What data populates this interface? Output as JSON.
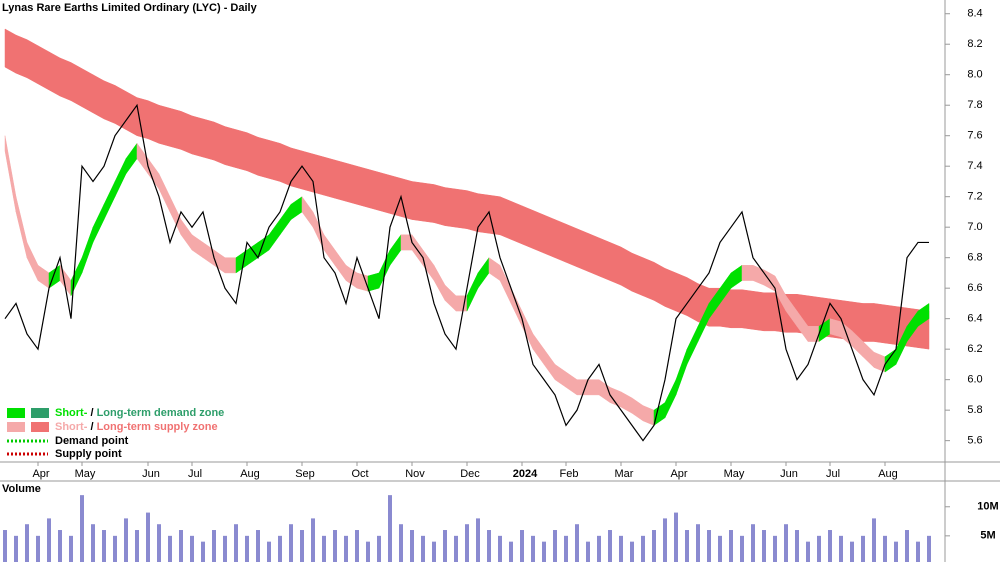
{
  "chart_data": [
    {
      "type": "line",
      "title": "Lynas Rare Earths Limited Ordinary (LYC) - Daily",
      "categories": [
        null,
        null,
        null,
        "Apr",
        null,
        null,
        null,
        "May",
        null,
        null,
        null,
        null,
        null,
        "Jun",
        null,
        null,
        null,
        "Jul",
        null,
        null,
        null,
        null,
        "Aug",
        null,
        null,
        null,
        null,
        "Sep",
        null,
        null,
        null,
        null,
        "Oct",
        null,
        null,
        null,
        null,
        "Nov",
        null,
        null,
        null,
        null,
        "Dec",
        null,
        null,
        null,
        null,
        "2024",
        null,
        null,
        null,
        "Feb",
        null,
        null,
        null,
        null,
        "Mar",
        null,
        null,
        null,
        null,
        "Apr",
        null,
        null,
        null,
        null,
        "May",
        null,
        null,
        null,
        null,
        "Jun",
        null,
        null,
        null,
        "Jul",
        null,
        null,
        null,
        null,
        "Aug",
        null,
        null,
        null,
        null
      ],
      "values": [
        6.4,
        6.5,
        6.3,
        6.2,
        6.6,
        6.8,
        6.4,
        7.4,
        7.3,
        7.4,
        7.6,
        7.7,
        7.8,
        7.4,
        7.2,
        6.9,
        7.1,
        7.0,
        7.1,
        6.8,
        6.6,
        6.5,
        6.9,
        6.8,
        7.0,
        7.1,
        7.3,
        7.4,
        7.3,
        6.8,
        6.7,
        6.5,
        6.8,
        6.6,
        6.4,
        7.0,
        7.2,
        6.9,
        6.8,
        6.5,
        6.3,
        6.2,
        6.6,
        7.0,
        7.1,
        6.8,
        6.6,
        6.4,
        6.1,
        6.0,
        5.9,
        5.7,
        5.8,
        6.0,
        6.1,
        5.9,
        5.8,
        5.7,
        5.6,
        5.7,
        6.0,
        6.4,
        6.5,
        6.6,
        6.7,
        6.9,
        7.0,
        7.1,
        6.8,
        6.7,
        6.6,
        6.2,
        6.0,
        6.1,
        6.3,
        6.5,
        6.4,
        6.2,
        6.0,
        5.9,
        6.1,
        6.2,
        6.8,
        6.9,
        6.9
      ],
      "color": "#000000",
      "bands": [
        {
          "upper": [
            8.3,
            8.26,
            8.23,
            8.19,
            8.15,
            8.11,
            8.08,
            8.04,
            8.0,
            7.96,
            7.93,
            7.89,
            7.85,
            7.83,
            7.8,
            7.78,
            7.76,
            7.73,
            7.71,
            7.69,
            7.66,
            7.64,
            7.62,
            7.59,
            7.57,
            7.55,
            7.52,
            7.5,
            7.48,
            7.46,
            7.44,
            7.42,
            7.4,
            7.38,
            7.36,
            7.34,
            7.32,
            7.3,
            7.29,
            7.28,
            7.26,
            7.25,
            7.24,
            7.22,
            7.21,
            7.2,
            7.17,
            7.14,
            7.11,
            7.08,
            7.05,
            7.02,
            6.99,
            6.96,
            6.93,
            6.9,
            6.87,
            6.83,
            6.8,
            6.77,
            6.73,
            6.7,
            6.67,
            6.63,
            6.6,
            6.6,
            6.59,
            6.59,
            6.58,
            6.57,
            6.57,
            6.56,
            6.56,
            6.55,
            6.54,
            6.53,
            6.52,
            6.51,
            6.5,
            6.5,
            6.49,
            6.48,
            6.47,
            6.46,
            6.45
          ],
          "lower": [
            8.05,
            8.01,
            7.98,
            7.94,
            7.9,
            7.86,
            7.83,
            7.79,
            7.75,
            7.71,
            7.68,
            7.64,
            7.6,
            7.58,
            7.55,
            7.53,
            7.51,
            7.48,
            7.46,
            7.44,
            7.41,
            7.39,
            7.37,
            7.34,
            7.32,
            7.3,
            7.27,
            7.25,
            7.23,
            7.21,
            7.19,
            7.17,
            7.15,
            7.13,
            7.11,
            7.09,
            7.07,
            7.05,
            7.04,
            7.03,
            7.01,
            7.0,
            6.99,
            6.97,
            6.96,
            6.95,
            6.92,
            6.89,
            6.86,
            6.83,
            6.8,
            6.77,
            6.74,
            6.71,
            6.68,
            6.65,
            6.62,
            6.58,
            6.55,
            6.52,
            6.48,
            6.45,
            6.42,
            6.38,
            6.35,
            6.35,
            6.34,
            6.34,
            6.33,
            6.32,
            6.32,
            6.31,
            6.31,
            6.3,
            6.29,
            6.28,
            6.27,
            6.26,
            6.25,
            6.25,
            6.24,
            6.23,
            6.22,
            6.21,
            6.2
          ],
          "rising_color": "#2e9e6a",
          "falling_color": "#f07272"
        },
        {
          "upper": [
            7.6,
            7.2,
            6.9,
            6.75,
            6.7,
            6.75,
            6.65,
            6.8,
            7.0,
            7.15,
            7.3,
            7.45,
            7.55,
            7.45,
            7.35,
            7.2,
            7.05,
            6.95,
            6.9,
            6.85,
            6.8,
            6.8,
            6.85,
            6.9,
            6.95,
            7.05,
            7.15,
            7.2,
            7.1,
            6.95,
            6.85,
            6.75,
            6.7,
            6.68,
            6.7,
            6.85,
            6.95,
            6.95,
            6.85,
            6.75,
            6.62,
            6.55,
            6.55,
            6.7,
            6.8,
            6.75,
            6.6,
            6.45,
            6.3,
            6.2,
            6.1,
            6.05,
            6.0,
            6.0,
            6.0,
            5.95,
            5.92,
            5.88,
            5.83,
            5.8,
            5.85,
            6.0,
            6.2,
            6.35,
            6.5,
            6.6,
            6.7,
            6.75,
            6.75,
            6.72,
            6.68,
            6.55,
            6.45,
            6.35,
            6.35,
            6.4,
            6.38,
            6.32,
            6.25,
            6.18,
            6.15,
            6.2,
            6.35,
            6.45,
            6.5
          ],
          "lower": [
            7.5,
            7.1,
            6.8,
            6.65,
            6.6,
            6.65,
            6.55,
            6.7,
            6.9,
            7.05,
            7.2,
            7.35,
            7.45,
            7.35,
            7.25,
            7.1,
            6.95,
            6.85,
            6.8,
            6.75,
            6.7,
            6.7,
            6.75,
            6.8,
            6.85,
            6.95,
            7.05,
            7.1,
            7.0,
            6.85,
            6.75,
            6.65,
            6.6,
            6.58,
            6.6,
            6.75,
            6.85,
            6.85,
            6.75,
            6.65,
            6.52,
            6.45,
            6.45,
            6.6,
            6.7,
            6.65,
            6.5,
            6.35,
            6.2,
            6.1,
            6.0,
            5.95,
            5.9,
            5.9,
            5.9,
            5.85,
            5.82,
            5.78,
            5.73,
            5.7,
            5.75,
            5.9,
            6.1,
            6.25,
            6.4,
            6.5,
            6.6,
            6.65,
            6.65,
            6.62,
            6.58,
            6.45,
            6.35,
            6.25,
            6.25,
            6.3,
            6.28,
            6.22,
            6.15,
            6.08,
            6.05,
            6.1,
            6.25,
            6.35,
            6.4
          ],
          "rising_color": "#00e000",
          "falling_color": "#f5a9a9"
        }
      ],
      "legend": [
        {
          "parts": [
            "Short-",
            " / ",
            "Long-term demand zone"
          ],
          "colors": [
            "#00e000",
            "#000000",
            "#2e9e6a"
          ]
        },
        {
          "parts": [
            "Short-",
            " / ",
            "Long-term supply zone"
          ],
          "colors": [
            "#f5a9a9",
            "#000000",
            "#f07272"
          ]
        }
      ],
      "points": [
        {
          "label": "Demand point",
          "color": "#00cc00"
        },
        {
          "label": "Supply point",
          "color": "#cc0000"
        }
      ],
      "legend_position": "bottom-left",
      "ylim": [
        5.46,
        8.49
      ],
      "yticks": [
        5.6,
        5.8,
        {
          "value": 6,
          "label": "6.0"
        },
        6.2,
        6.4,
        6.6,
        6.8,
        {
          "value": 7,
          "label": "7.0"
        },
        7.2,
        7.4,
        7.6,
        7.8,
        {
          "value": 8,
          "label": "8.0"
        },
        8.2,
        8.4
      ]
    },
    {
      "type": "bar",
      "title": "Volume",
      "values": [
        6,
        5,
        7,
        5,
        8,
        6,
        5,
        12,
        7,
        6,
        5,
        8,
        6,
        9,
        7,
        5,
        6,
        5,
        4,
        6,
        5,
        7,
        5,
        6,
        4,
        5,
        7,
        6,
        8,
        5,
        6,
        5,
        6,
        4,
        5,
        12,
        7,
        6,
        5,
        4,
        6,
        5,
        7,
        8,
        6,
        5,
        4,
        6,
        5,
        4,
        6,
        5,
        7,
        4,
        5,
        6,
        5,
        4,
        5,
        6,
        8,
        9,
        6,
        7,
        6,
        5,
        6,
        5,
        7,
        6,
        5,
        7,
        6,
        4,
        5,
        6,
        5,
        4,
        5,
        8,
        5,
        4,
        6,
        4,
        5
      ],
      "color": "#8a8ad0",
      "ylim": [
        0.5,
        13.4
      ],
      "yticks": [
        {
          "value": 10,
          "label": "10M"
        },
        {
          "value": 5,
          "label": "5M"
        }
      ]
    }
  ]
}
